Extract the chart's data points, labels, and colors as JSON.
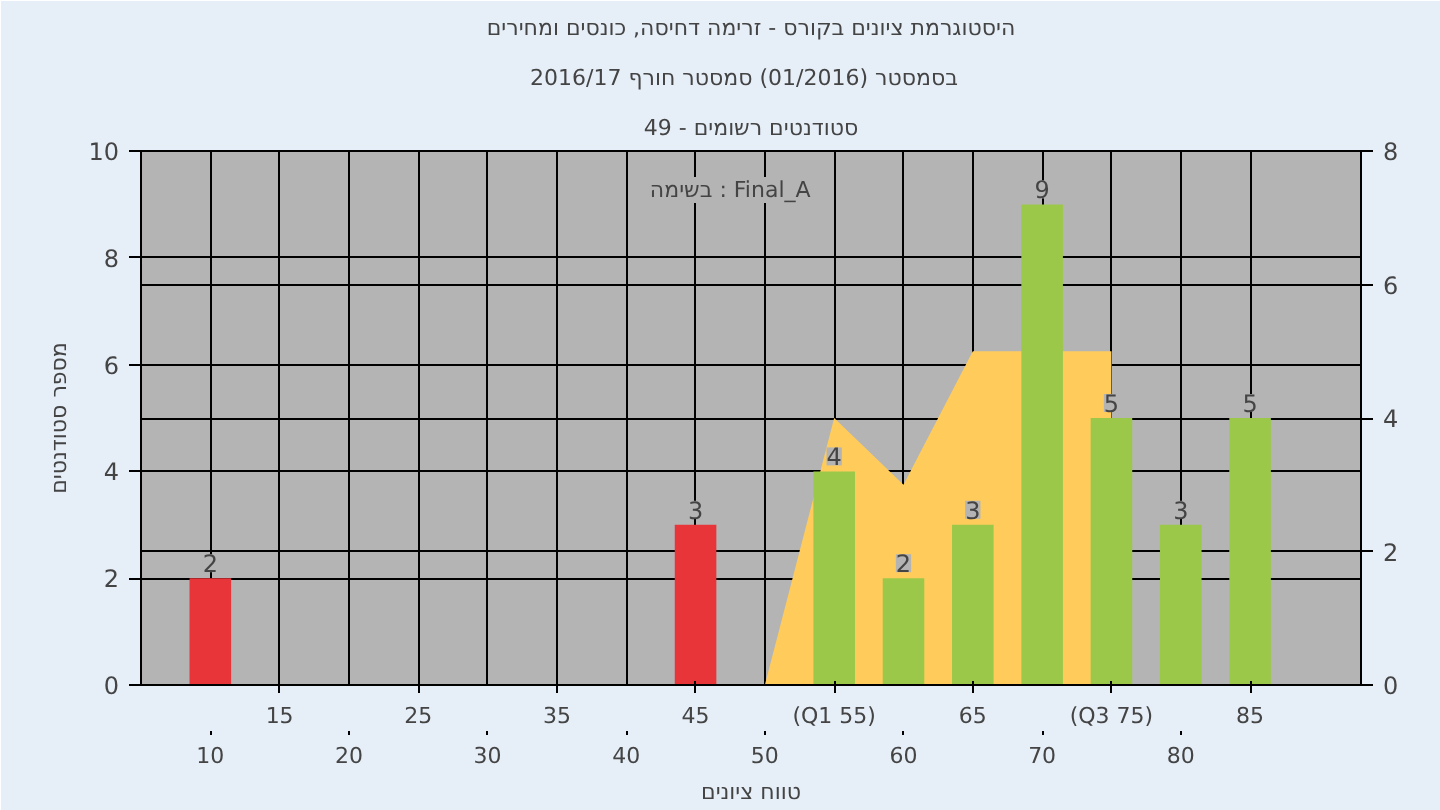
{
  "chart_data": {
    "type": "bar",
    "title": "היסטוגרמת ציונים בקורס - זרימה דחיסה, כונסים ומחירים",
    "subtitle": "בסמסטר  (01/2016)  סמסטר חורף 2016/17",
    "xlabel": "טווח ציונים",
    "ylabel": "מספר סטודנטים",
    "annotations": [
      "סטודנטים רשומים - 49",
      "בשימה : Final_A"
    ],
    "categories": [
      "10",
      "15",
      "20",
      "25",
      "30",
      "35",
      "40",
      "45",
      "50",
      "(Q1 55)",
      "60",
      "65",
      "70",
      "(Q3 75)",
      "80",
      "85"
    ],
    "series": [
      {
        "type": "area",
        "axis": "y2",
        "color": "#ffcc5c",
        "values": [
          null,
          null,
          null,
          null,
          null,
          null,
          null,
          null,
          0,
          4,
          3,
          5,
          null,
          5,
          null,
          null
        ]
      },
      {
        "colors": [
          "#e8353a",
          "#e8353a",
          "#e8353a",
          "#e8353a",
          "#e8353a",
          "#e8353a",
          "#e8353a",
          "#e8353a",
          "#e8353a",
          "#9cc84a",
          "#9cc84a",
          "#9cc84a",
          "#9cc84a",
          "#9cc84a",
          "#9cc84a",
          "#9cc84a"
        ],
        "values": [
          2,
          0,
          0,
          0,
          0,
          0,
          0,
          3,
          0,
          4,
          2,
          3,
          9,
          5,
          3,
          5
        ],
        "value_labels": [
          "2",
          null,
          null,
          null,
          null,
          null,
          null,
          "3",
          null,
          "4",
          "2",
          "3",
          "9",
          "5",
          "3",
          "5"
        ]
      }
    ],
    "ylim": [
      0,
      10
    ],
    "yticks": [
      0,
      2,
      4,
      6,
      8,
      10
    ],
    "y2lim": [
      0,
      8
    ],
    "y2ticks": [
      0,
      2,
      4,
      6,
      8
    ],
    "grid": true
  }
}
